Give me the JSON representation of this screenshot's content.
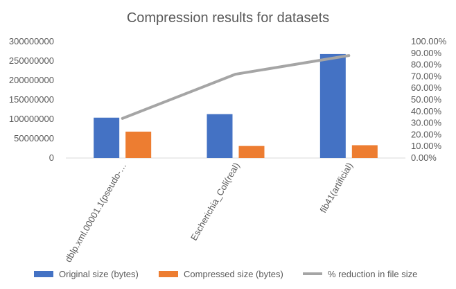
{
  "chart_data": {
    "type": "bar",
    "title": "Compression results for datasets",
    "categories": [
      "dblp.xml.00001.1(pseudo-…",
      "Escherichia_Coli(real)",
      "fib41(artificial)"
    ],
    "series": [
      {
        "name": "Original size (bytes)",
        "type": "bar",
        "axis": "left",
        "color": "#4472C4",
        "values": [
          104000000,
          113000000,
          268000000
        ]
      },
      {
        "name": "Compressed size (bytes)",
        "type": "bar",
        "axis": "left",
        "color": "#ED7D31",
        "values": [
          68000000,
          31000000,
          33000000
        ]
      },
      {
        "name": "% reduction in file size",
        "type": "line",
        "axis": "right",
        "color": "#A5A5A5",
        "values": [
          0.34,
          0.72,
          0.88
        ]
      }
    ],
    "y_left": {
      "ylim": [
        0,
        300000000
      ],
      "ticks": [
        "0",
        "50000000",
        "100000000",
        "150000000",
        "200000000",
        "250000000",
        "300000000"
      ]
    },
    "y_right": {
      "ylim": [
        0,
        1
      ],
      "ticks": [
        "0.00%",
        "10.00%",
        "20.00%",
        "30.00%",
        "40.00%",
        "50.00%",
        "60.00%",
        "70.00%",
        "80.00%",
        "90.00%",
        "100.00%"
      ]
    },
    "grid": false,
    "legend_position": "bottom"
  }
}
